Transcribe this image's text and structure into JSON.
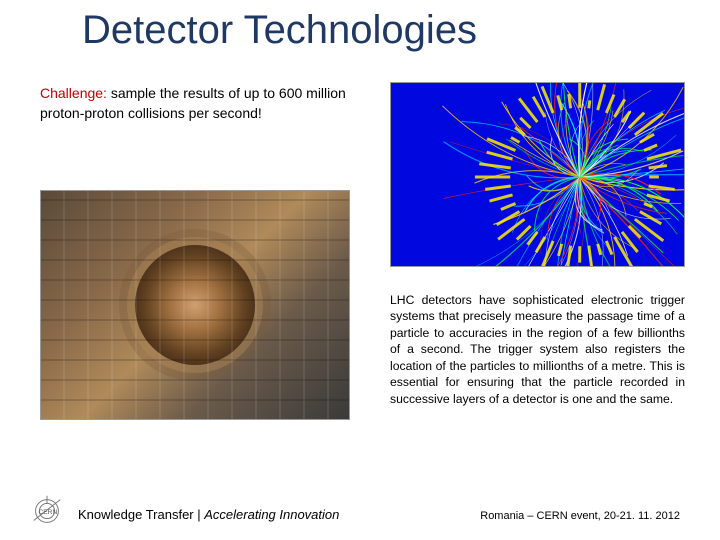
{
  "title": "Detector Technologies",
  "challenge": {
    "label": "Challenge:",
    "text": " sample the results of up to 600 million proton-proton collisions per second!"
  },
  "body": "LHC detectors have sophisticated electronic trigger systems that precisely measure the passage time of a particle to accuracies in the region of a few billionths of a second. The trigger system also registers the location of the particles to millionths of a metre. This is essential for ensuring that the particle recorded in successive layers of a detector is one and the same.",
  "footer": {
    "left_plain": "Knowledge Transfer | ",
    "left_italic": "Accelerating Innovation",
    "right": "Romania – CERN event, 20-21. 11. 2012"
  },
  "logo_label": "CERN",
  "colors": {
    "title": "#1f3864",
    "challenge_label": "#c00000",
    "event_bg": "#0008e0"
  },
  "images": {
    "detector": {
      "type": "photo-placeholder",
      "subject": "LHC detector hardware with concentric circular core"
    },
    "event": {
      "type": "collision-event-display",
      "background": "#0008e0",
      "track_colors": [
        "#ffcc00",
        "#ff2200",
        "#00e0ff",
        "#00ff40",
        "#ffffff"
      ],
      "tower_color": "#ffee00",
      "n_tracks_approx": 120
    }
  }
}
